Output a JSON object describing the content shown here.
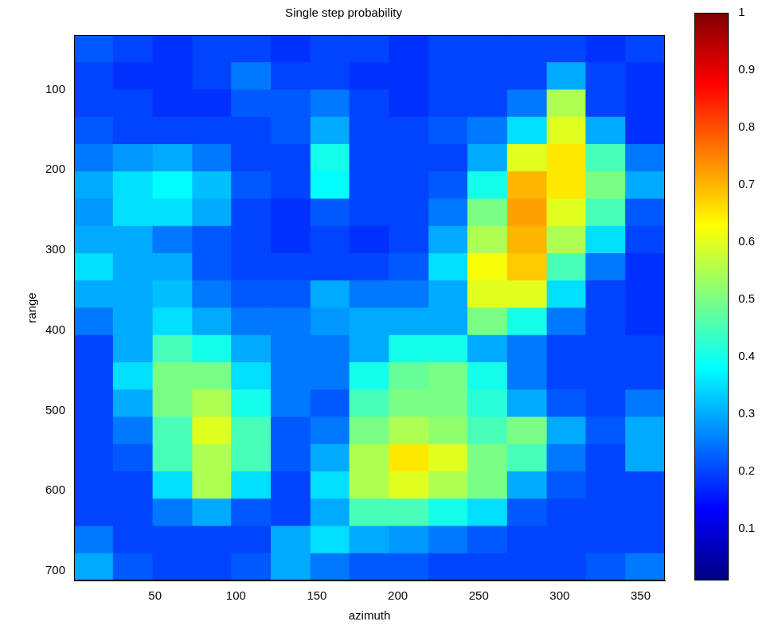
{
  "chart_data": {
    "type": "heatmap",
    "title": "Single step probability",
    "x_label": "azimuth",
    "y_label": "range",
    "x": [
      12,
      36,
      61,
      85,
      109,
      134,
      158,
      182,
      207,
      231,
      255,
      280,
      304,
      328,
      353
    ],
    "y": [
      49,
      83,
      117,
      151,
      185,
      219,
      253,
      287,
      321,
      355,
      389,
      423,
      457,
      491,
      525,
      559,
      593,
      627,
      661,
      695
    ],
    "values": [
      [
        0.22,
        0.2,
        0.18,
        0.2,
        0.2,
        0.18,
        0.2,
        0.2,
        0.18,
        0.2,
        0.2,
        0.2,
        0.2,
        0.18,
        0.2
      ],
      [
        0.2,
        0.18,
        0.18,
        0.2,
        0.25,
        0.2,
        0.2,
        0.18,
        0.18,
        0.2,
        0.2,
        0.2,
        0.3,
        0.2,
        0.18
      ],
      [
        0.2,
        0.2,
        0.18,
        0.18,
        0.22,
        0.22,
        0.25,
        0.2,
        0.18,
        0.2,
        0.2,
        0.25,
        0.55,
        0.2,
        0.18
      ],
      [
        0.22,
        0.2,
        0.2,
        0.2,
        0.2,
        0.22,
        0.3,
        0.2,
        0.2,
        0.22,
        0.25,
        0.35,
        0.6,
        0.3,
        0.18
      ],
      [
        0.25,
        0.28,
        0.3,
        0.25,
        0.2,
        0.2,
        0.4,
        0.2,
        0.2,
        0.2,
        0.3,
        0.6,
        0.65,
        0.45,
        0.25
      ],
      [
        0.3,
        0.35,
        0.38,
        0.32,
        0.22,
        0.2,
        0.38,
        0.2,
        0.2,
        0.22,
        0.4,
        0.7,
        0.65,
        0.5,
        0.3
      ],
      [
        0.28,
        0.35,
        0.35,
        0.3,
        0.2,
        0.18,
        0.22,
        0.2,
        0.2,
        0.25,
        0.5,
        0.72,
        0.6,
        0.45,
        0.22
      ],
      [
        0.3,
        0.3,
        0.25,
        0.22,
        0.2,
        0.18,
        0.2,
        0.18,
        0.2,
        0.3,
        0.55,
        0.7,
        0.55,
        0.35,
        0.2
      ],
      [
        0.35,
        0.3,
        0.3,
        0.22,
        0.2,
        0.2,
        0.2,
        0.2,
        0.22,
        0.35,
        0.62,
        0.68,
        0.45,
        0.25,
        0.18
      ],
      [
        0.3,
        0.3,
        0.32,
        0.25,
        0.22,
        0.22,
        0.3,
        0.25,
        0.25,
        0.3,
        0.6,
        0.6,
        0.35,
        0.2,
        0.18
      ],
      [
        0.25,
        0.3,
        0.35,
        0.3,
        0.25,
        0.25,
        0.28,
        0.3,
        0.3,
        0.3,
        0.5,
        0.4,
        0.25,
        0.2,
        0.18
      ],
      [
        0.2,
        0.3,
        0.45,
        0.4,
        0.3,
        0.25,
        0.25,
        0.3,
        0.4,
        0.4,
        0.3,
        0.25,
        0.2,
        0.2,
        0.2
      ],
      [
        0.2,
        0.35,
        0.5,
        0.5,
        0.35,
        0.25,
        0.25,
        0.4,
        0.48,
        0.5,
        0.4,
        0.25,
        0.2,
        0.2,
        0.2
      ],
      [
        0.2,
        0.3,
        0.5,
        0.55,
        0.4,
        0.25,
        0.22,
        0.45,
        0.5,
        0.5,
        0.42,
        0.3,
        0.22,
        0.2,
        0.25
      ],
      [
        0.2,
        0.25,
        0.45,
        0.6,
        0.45,
        0.22,
        0.25,
        0.5,
        0.55,
        0.52,
        0.45,
        0.5,
        0.3,
        0.22,
        0.3
      ],
      [
        0.2,
        0.22,
        0.45,
        0.55,
        0.45,
        0.22,
        0.3,
        0.55,
        0.65,
        0.6,
        0.5,
        0.45,
        0.25,
        0.2,
        0.3
      ],
      [
        0.2,
        0.2,
        0.35,
        0.55,
        0.35,
        0.2,
        0.35,
        0.55,
        0.6,
        0.55,
        0.5,
        0.3,
        0.22,
        0.2,
        0.2
      ],
      [
        0.2,
        0.2,
        0.25,
        0.3,
        0.22,
        0.2,
        0.3,
        0.45,
        0.45,
        0.4,
        0.35,
        0.22,
        0.2,
        0.2,
        0.2
      ],
      [
        0.25,
        0.2,
        0.2,
        0.2,
        0.2,
        0.3,
        0.35,
        0.3,
        0.28,
        0.25,
        0.22,
        0.2,
        0.2,
        0.2,
        0.2
      ],
      [
        0.3,
        0.22,
        0.2,
        0.2,
        0.22,
        0.3,
        0.25,
        0.22,
        0.22,
        0.2,
        0.2,
        0.2,
        0.2,
        0.22,
        0.25
      ]
    ],
    "xlim": [
      0,
      365
    ],
    "ylim": [
      32,
      712
    ],
    "xticks": [
      50,
      100,
      150,
      200,
      250,
      300,
      350
    ],
    "yticks": [
      100,
      200,
      300,
      400,
      500,
      600,
      700
    ],
    "colorbar": {
      "range": [
        0.01,
        1
      ],
      "ticks": [
        0.1,
        0.2,
        0.3,
        0.4,
        0.5,
        0.6,
        0.7,
        0.8,
        0.9,
        1
      ]
    },
    "grid": false
  }
}
